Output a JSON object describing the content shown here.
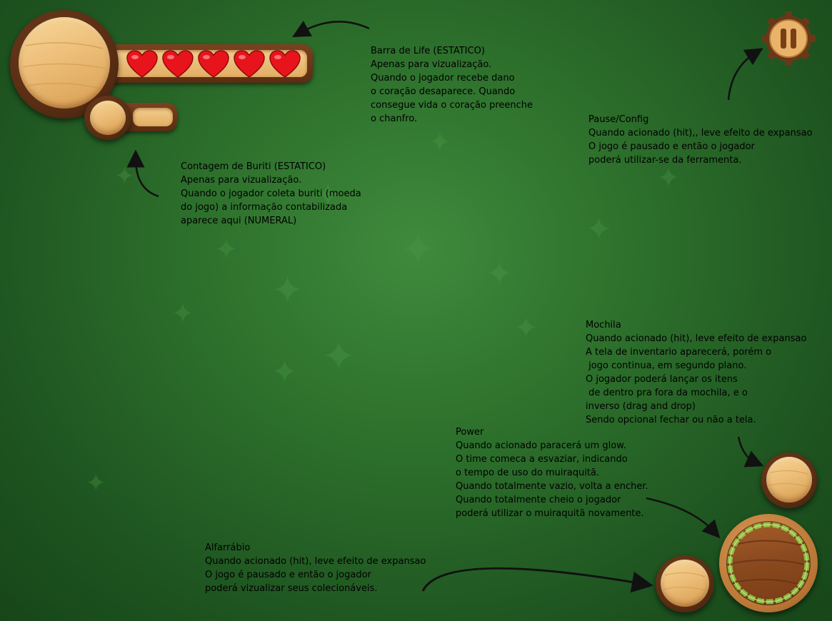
{
  "hud": {
    "hearts": 5,
    "buriti_count": ""
  },
  "notes": {
    "life_bar": "Barra de Life (ESTATICO)\nApenas para vizualização.\nQuando o jogador recebe dano\no coração desaparece. Quando\nconsegue vida o coração preenche\no chanfro.",
    "buriti": "Contagem de Buriti (ESTATICO)\nApenas para vizualização.\nQuando o jogador coleta buriti (moeda\ndo jogo) a informação contabilizada\naparece aqui (NUMERAL)",
    "pause": "Pause/Config\nQuando acionado (hit),, leve efeito de expansao\nO jogo é pausado e então o jogador\npoderá utilizar-se da ferramenta.",
    "mochila": "Mochila\nQuando acionado (hit), leve efeito de expansao\nA tela de inventario aparecerá, porém o\n jogo continua, em segundo plano.\nO jogador poderá lançar os itens\n de dentro pra fora da mochila, e o\ninverso (drag and drop)\nSendo opcional fechar ou não a tela.",
    "power": "Power\nQuando acionado paracerá um glow.\nO time comeca a esvaziar, indicando\no tempo de uso do muiraquitã.\nQuando totalmente vazio, volta a encher.\nQuando totalmente cheio o jogador\npoderá utilizar o muiraquitã novamente.",
    "alfarrabio": "Alfarrábio\nQuando acionado (hit), leve efeito de expansao\nO jogo é pausado e então o jogador\npoderá vizualizar seus colecionáveis."
  },
  "icons": {
    "heart": "heart-icon",
    "pause": "pause-icon",
    "arrow": "arrow-icon"
  },
  "colors": {
    "heart": "#e8141c",
    "power_glow": "#8ed14a"
  }
}
